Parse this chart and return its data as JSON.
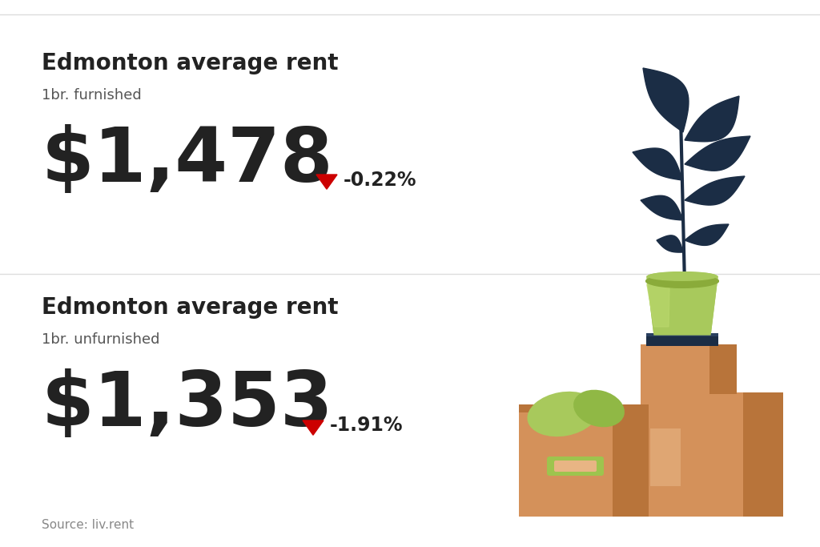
{
  "background_color": "#ffffff",
  "divider_color": "#dddddd",
  "section1": {
    "title": "Edmonton average rent",
    "subtitle": "1br. furnished",
    "price": "$1,478",
    "change": "-0.22%",
    "arrow_color": "#cc0000"
  },
  "section2": {
    "title": "Edmonton average rent",
    "subtitle": "1br. unfurnished",
    "price": "$1,353",
    "change": "-1.91%",
    "arrow_color": "#cc0000"
  },
  "source": "Source: liv.rent",
  "title_fontsize": 20,
  "subtitle_fontsize": 13,
  "price_fontsize": 68,
  "change_fontsize": 17,
  "source_fontsize": 11,
  "title_color": "#222222",
  "subtitle_color": "#555555",
  "price_color": "#222222",
  "change_color": "#222222",
  "source_color": "#888888",
  "plant_colors": {
    "leaves": "#1b2d45",
    "pot": "#a8c95c",
    "pot_highlight": "#bcd96e",
    "pot_dark": "#8aab3a",
    "book_color": "#1b2d45",
    "book_stripe": "#2a4060",
    "box_main": "#d4915a",
    "box_dark": "#b8743a",
    "box_light": "#e8b584",
    "box_handle": "#9dc44e",
    "green_leaf1": "#a8c95c",
    "green_leaf2": "#90b845"
  }
}
